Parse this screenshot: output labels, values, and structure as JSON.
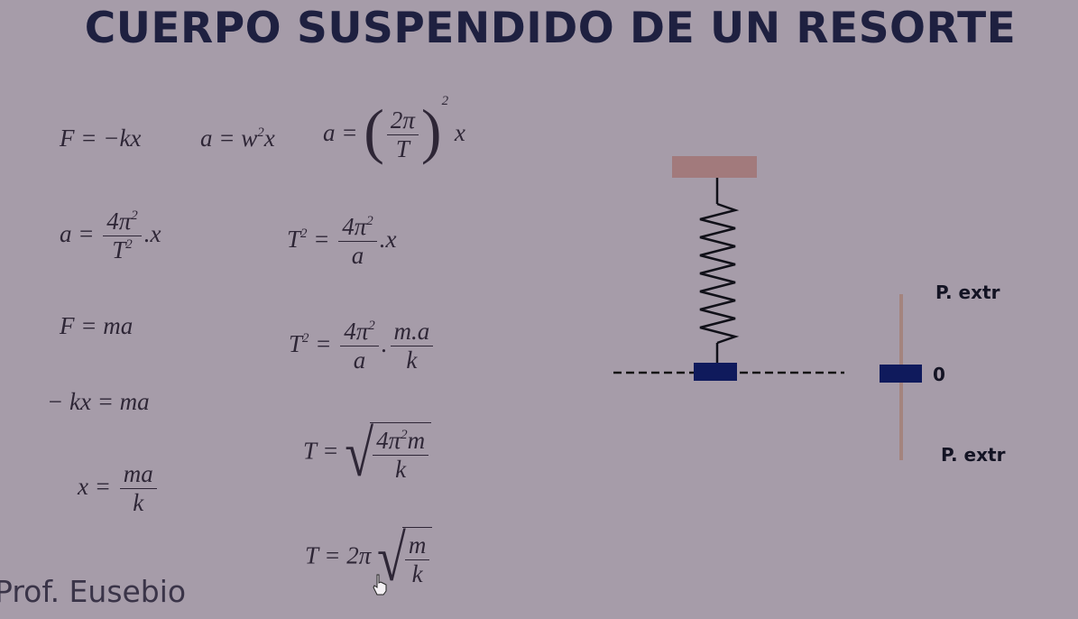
{
  "title": "CUERPO SUSPENDIDO DE UN RESORTE",
  "signature": "Prof. Eusebio",
  "formulas": {
    "f1": {
      "lhs": "F",
      "rhs": "= −kx"
    },
    "f2": {
      "lhs": "a",
      "mid": "= w",
      "exp": "2",
      "rhs": "x"
    },
    "f3": {
      "lhs": "a =",
      "num": "2π",
      "den": "T",
      "exp": "2",
      "rhs": "x"
    },
    "f4": {
      "lhs": "a =",
      "num": "4π",
      "num_exp": "2",
      "den": "T",
      "den_exp": "2",
      "rhs": ".x"
    },
    "f5": {
      "lhs": "T",
      "lhs_exp": "2",
      "eq": "=",
      "num": "4π",
      "num_exp": "2",
      "den": "a",
      "rhs": ".x"
    },
    "f6": {
      "text": "F = ma"
    },
    "f7": {
      "lhs": "T",
      "lhs_exp": "2",
      "eq": "=",
      "num": "4π",
      "num_exp": "2",
      "den": "a",
      "dot": ".",
      "num2": "m.a",
      "den2": "k"
    },
    "f8": {
      "text": "− kx = ma"
    },
    "f9": {
      "lhs": "T =",
      "num": "4π",
      "num_exp": "2",
      "num_tail": "m",
      "den": "k"
    },
    "f10": {
      "lhs": "x =",
      "num": "ma",
      "den": "k"
    },
    "f11": {
      "lhs": "T = 2π",
      "num": "m",
      "den": "k"
    }
  },
  "diagram": {
    "labels": {
      "top_extreme": "P. extr",
      "zero": "0",
      "bottom_extreme": "P. extr"
    },
    "colors": {
      "support": "#a27a7c",
      "mass": "#0f1a5c",
      "axis": "#a4847e",
      "spring": "#101018"
    }
  }
}
